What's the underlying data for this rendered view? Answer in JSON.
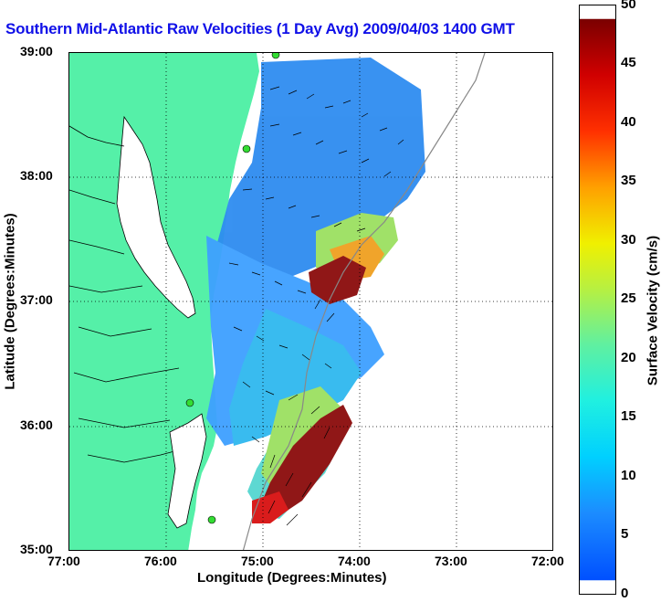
{
  "title": "Southern Mid-Atlantic Raw Velocities (1 Day Avg) 2009/04/03 1400 GMT",
  "xlabel": "Longitude (Degrees:Minutes)",
  "ylabel": "Latitude (Degrees:Minutes)",
  "x_ticks": [
    "77:00",
    "76:00",
    "75:00",
    "74:00",
    "73:00",
    "72:00"
  ],
  "y_ticks": [
    "39:00",
    "38:00",
    "37:00",
    "36:00",
    "35:00"
  ],
  "colorbar": {
    "label": "Surface Velocity (cm/s)",
    "ticks": [
      "50",
      "45",
      "40",
      "35",
      "30",
      "25",
      "20",
      "15",
      "10",
      "5",
      "0"
    ],
    "min": 0,
    "max": 50
  },
  "colors": {
    "land": "#55f0a8",
    "title": "#1010e8",
    "station": "#33dd33"
  },
  "map": {
    "lon_range": [
      -77,
      -72
    ],
    "lat_range": [
      35,
      39
    ],
    "grid": "dotted",
    "stations": [
      {
        "lon": -74.85,
        "lat": 38.99
      },
      {
        "lon": -75.15,
        "lat": 38.22
      },
      {
        "lon": -75.7,
        "lat": 36.19
      },
      {
        "lon": -75.52,
        "lat": 35.25
      }
    ]
  }
}
